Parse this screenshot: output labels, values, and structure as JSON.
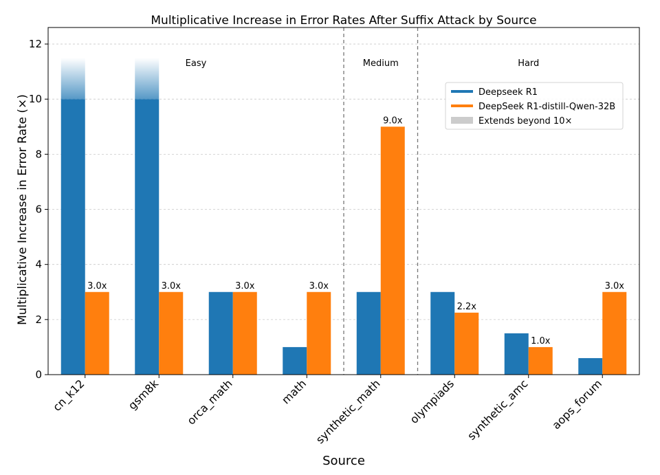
{
  "chart_data": {
    "type": "bar",
    "title": "Multiplicative Increase in Error Rates After Suffix Attack by Source",
    "xlabel": "Source",
    "ylabel": "Multiplicative Increase in Error Rate (×)",
    "ylim": [
      0,
      12.6
    ],
    "yticks": [
      0,
      2,
      4,
      6,
      8,
      10,
      12
    ],
    "grid": "y-dashed",
    "categories": [
      "cn_k12",
      "gsm8k",
      "orca_math",
      "math",
      "synthetic_math",
      "olympiads",
      "synthetic_amc",
      "aops_forum"
    ],
    "series": [
      {
        "name": "Deepseek R1",
        "color": "#1f77b4",
        "values": [
          10,
          10,
          3,
          1,
          3,
          3,
          1.5,
          0.6
        ],
        "extends_beyond": [
          true,
          true,
          false,
          false,
          false,
          false,
          false,
          false
        ]
      },
      {
        "name": "DeepSeek R1-distill-Qwen-32B",
        "color": "#ff7f0e",
        "values": [
          3,
          3,
          3,
          3,
          9,
          2.25,
          1,
          3
        ],
        "data_labels": [
          "3.0x",
          "3.0x",
          "3.0x",
          "3.0x",
          "9.0x",
          "2.2x",
          "1.0x",
          "3.0x"
        ]
      }
    ],
    "regions": [
      {
        "label": "Easy",
        "from": 0,
        "to": 3
      },
      {
        "label": "Medium",
        "from": 4,
        "to": 4
      },
      {
        "label": "Hard",
        "from": 5,
        "to": 7
      }
    ],
    "legend": {
      "position": "upper-right",
      "entries": [
        {
          "label": "Deepseek R1",
          "color": "#1f77b4",
          "kind": "line"
        },
        {
          "label": "DeepSeek R1-distill-Qwen-32B",
          "color": "#ff7f0e",
          "kind": "line"
        },
        {
          "label": "Extends beyond 10×",
          "color": "#cccccc",
          "kind": "patch"
        }
      ]
    }
  }
}
